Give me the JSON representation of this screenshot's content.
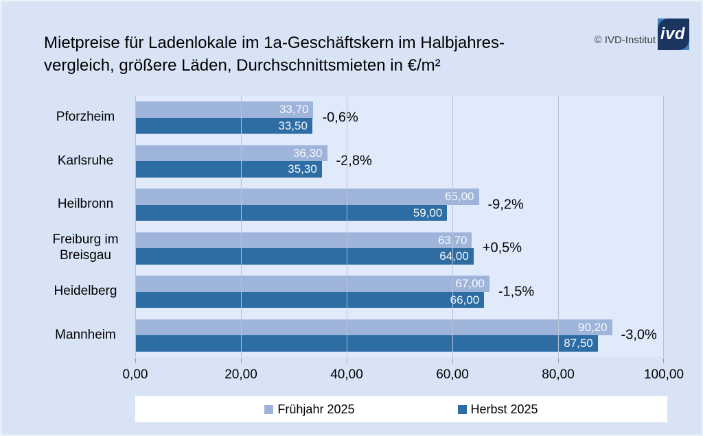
{
  "title": {
    "line1": "Mietpreise für Ladenlokale im 1a-Geschäftskern im Halbjahres-",
    "line2": "vergleich, größere Läden, Durchschnittsmieten in €/m²"
  },
  "brand": {
    "copyright": "© IVD-Institut",
    "logo_text": "ivd",
    "logo_navy": "#1a3560",
    "logo_light_blue": "#3f80c0"
  },
  "colors": {
    "background": "#d8e4f6",
    "plot_background": "#e0eafa",
    "gridline": "#b5c2d8",
    "value_label": "#ffffff"
  },
  "chart_data": {
    "type": "bar",
    "orientation": "horizontal",
    "title": "Mietpreise für Ladenlokale im 1a-Geschäftskern im Halbjahresvergleich, größere Läden, Durchschnittsmieten in €/m²",
    "categories": [
      "Pforzheim",
      "Karlsruhe",
      "Heilbronn",
      "Freiburg im Breisgau",
      "Heidelberg",
      "Mannheim"
    ],
    "series": [
      {
        "name": "Frühjahr 2025",
        "color": "#9fb4da",
        "values": [
          33.7,
          36.3,
          65.0,
          63.7,
          67.0,
          90.2
        ],
        "labels": [
          "33,70",
          "36,30",
          "65,00",
          "63,70",
          "67,00",
          "90,20"
        ]
      },
      {
        "name": "Herbst 2025",
        "color": "#2e6da4",
        "values": [
          33.5,
          35.3,
          59.0,
          64.0,
          66.0,
          87.5
        ],
        "labels": [
          "33,50",
          "35,30",
          "59,00",
          "64,00",
          "66,00",
          "87,50"
        ]
      }
    ],
    "pct_change": [
      "-0,6%",
      "-2,8%",
      "-9,2%",
      "+0,5%",
      "-1,5%",
      "-3,0%"
    ],
    "xlim": [
      0,
      100
    ],
    "x_ticks": [
      "0,00",
      "20,00",
      "40,00",
      "60,00",
      "80,00",
      "100,00"
    ],
    "grid": true,
    "legend_position": "bottom"
  }
}
